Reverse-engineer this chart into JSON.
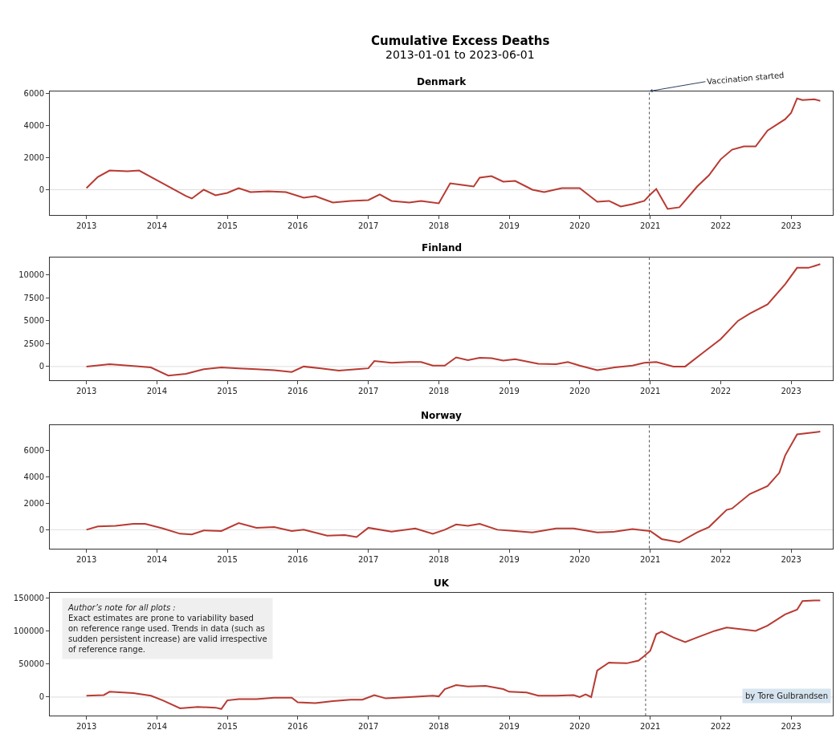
{
  "chart_data": [
    {
      "type": "line",
      "title": "Denmark",
      "color": "#b83a32",
      "x": [
        "2013-01",
        "2013-03",
        "2013-05",
        "2013-08",
        "2013-10",
        "2014-01",
        "2014-04",
        "2014-06",
        "2014-07",
        "2014-09",
        "2014-11",
        "2015-01",
        "2015-03",
        "2015-05",
        "2015-08",
        "2015-11",
        "2016-02",
        "2016-04",
        "2016-07",
        "2016-10",
        "2017-01",
        "2017-03",
        "2017-05",
        "2017-08",
        "2017-10",
        "2018-01",
        "2018-03",
        "2018-05",
        "2018-07",
        "2018-08",
        "2018-10",
        "2018-12",
        "2019-02",
        "2019-05",
        "2019-07",
        "2019-10",
        "2020-01",
        "2020-04",
        "2020-06",
        "2020-08",
        "2020-10",
        "2020-12",
        "2021-01",
        "2021-02",
        "2021-04",
        "2021-06",
        "2021-09",
        "2021-11",
        "2022-01",
        "2022-03",
        "2022-05",
        "2022-07",
        "2022-09",
        "2022-12",
        "2023-01",
        "2023-02",
        "2023-03",
        "2023-05",
        "2023-06"
      ],
      "values": [
        100,
        800,
        1200,
        1150,
        1200,
        600,
        0,
        -400,
        -550,
        0,
        -350,
        -200,
        100,
        -150,
        -100,
        -150,
        -500,
        -400,
        -800,
        -700,
        -650,
        -300,
        -700,
        -800,
        -700,
        -850,
        400,
        300,
        200,
        750,
        850,
        500,
        550,
        0,
        -150,
        100,
        100,
        -750,
        -700,
        -1050,
        -900,
        -700,
        -300,
        50,
        -1200,
        -1100,
        200,
        900,
        1900,
        2500,
        2700,
        2700,
        3700,
        4400,
        4800,
        5700,
        5600,
        5650,
        5550
      ],
      "xlim": [
        "2012-06-25",
        "2023-08-05"
      ],
      "xticks": [
        {
          "value": "2013-01-01",
          "label": "2013"
        },
        {
          "value": "2014-01-01",
          "label": "2014"
        },
        {
          "value": "2015-01-01",
          "label": "2015"
        },
        {
          "value": "2016-01-01",
          "label": "2016"
        },
        {
          "value": "2017-01-01",
          "label": "2017"
        },
        {
          "value": "2018-01-01",
          "label": "2018"
        },
        {
          "value": "2019-01-01",
          "label": "2019"
        },
        {
          "value": "2020-01-01",
          "label": "2020"
        },
        {
          "value": "2021-01-01",
          "label": "2021"
        },
        {
          "value": "2022-01-01",
          "label": "2022"
        },
        {
          "value": "2023-01-01",
          "label": "2023"
        }
      ],
      "ylim": [
        -1600,
        6150
      ],
      "yticks": [
        0,
        2000,
        4000,
        6000
      ],
      "ref_lines": [
        {
          "axis": "x",
          "value": "2020-12-27",
          "color": "#555555",
          "line_style": "dotted"
        },
        {
          "axis": "y",
          "value": 0,
          "color": "#dddddd",
          "line_style": "solid"
        }
      ],
      "annotations": [
        "Cumulative Excess Deaths",
        "2013-01-01 to 2023-06-01",
        {
          "text": "Vaccination started",
          "x": "2020-12-27",
          "y": 6150
        }
      ]
    },
    {
      "type": "line",
      "title": "Finland",
      "color": "#b83a32",
      "x": [
        "2013-01",
        "2013-05",
        "2013-09",
        "2013-12",
        "2014-03",
        "2014-06",
        "2014-09",
        "2014-12",
        "2015-03",
        "2015-06",
        "2015-09",
        "2015-12",
        "2016-02",
        "2016-05",
        "2016-08",
        "2016-11",
        "2017-01",
        "2017-02",
        "2017-05",
        "2017-08",
        "2017-10",
        "2017-12",
        "2018-02",
        "2018-04",
        "2018-06",
        "2018-08",
        "2018-10",
        "2018-12",
        "2019-02",
        "2019-06",
        "2019-09",
        "2019-11",
        "2020-01",
        "2020-04",
        "2020-07",
        "2020-10",
        "2020-12",
        "2021-02",
        "2021-05",
        "2021-07",
        "2021-10",
        "2022-01",
        "2022-04",
        "2022-06",
        "2022-09",
        "2022-12",
        "2023-02",
        "2023-04",
        "2023-06"
      ],
      "values": [
        0,
        250,
        50,
        -100,
        -1000,
        -800,
        -300,
        -100,
        -200,
        -300,
        -400,
        -600,
        0,
        -200,
        -450,
        -300,
        -200,
        600,
        400,
        500,
        500,
        100,
        100,
        1000,
        700,
        950,
        900,
        650,
        800,
        300,
        250,
        500,
        100,
        -400,
        -100,
        100,
        400,
        500,
        0,
        0,
        1500,
        3000,
        5000,
        5800,
        6800,
        9000,
        10800,
        10800,
        11200
      ],
      "xlim": [
        "2012-06-25",
        "2023-08-05"
      ],
      "xticks": [
        {
          "value": "2013-01-01",
          "label": "2013"
        },
        {
          "value": "2014-01-01",
          "label": "2014"
        },
        {
          "value": "2015-01-01",
          "label": "2015"
        },
        {
          "value": "2016-01-01",
          "label": "2016"
        },
        {
          "value": "2017-01-01",
          "label": "2017"
        },
        {
          "value": "2018-01-01",
          "label": "2018"
        },
        {
          "value": "2019-01-01",
          "label": "2019"
        },
        {
          "value": "2020-01-01",
          "label": "2020"
        },
        {
          "value": "2021-01-01",
          "label": "2021"
        },
        {
          "value": "2022-01-01",
          "label": "2022"
        },
        {
          "value": "2023-01-01",
          "label": "2023"
        }
      ],
      "ylim": [
        -1500,
        11900
      ],
      "yticks": [
        0,
        2500,
        5000,
        7500,
        10000
      ],
      "ref_lines": [
        {
          "axis": "x",
          "value": "2020-12-27",
          "color": "#555555",
          "line_style": "dotted"
        },
        {
          "axis": "y",
          "value": 0,
          "color": "#dddddd",
          "line_style": "solid"
        }
      ]
    },
    {
      "type": "line",
      "title": "Norway",
      "color": "#b83a32",
      "x": [
        "2013-01",
        "2013-03",
        "2013-06",
        "2013-09",
        "2013-11",
        "2014-02",
        "2014-05",
        "2014-07",
        "2014-09",
        "2014-12",
        "2015-03",
        "2015-06",
        "2015-09",
        "2015-12",
        "2016-02",
        "2016-06",
        "2016-09",
        "2016-11",
        "2017-01",
        "2017-05",
        "2017-09",
        "2017-12",
        "2018-02",
        "2018-04",
        "2018-06",
        "2018-08",
        "2018-11",
        "2019-02",
        "2019-05",
        "2019-09",
        "2019-12",
        "2020-04",
        "2020-07",
        "2020-10",
        "2020-12",
        "2021-01",
        "2021-03",
        "2021-06",
        "2021-09",
        "2021-11",
        "2022-02",
        "2022-03",
        "2022-06",
        "2022-09",
        "2022-11",
        "2022-12",
        "2023-02",
        "2023-06"
      ],
      "values": [
        0,
        250,
        300,
        450,
        450,
        100,
        -300,
        -350,
        -50,
        -100,
        500,
        150,
        200,
        -100,
        0,
        -450,
        -400,
        -550,
        150,
        -150,
        100,
        -300,
        0,
        400,
        300,
        450,
        0,
        -100,
        -200,
        100,
        100,
        -200,
        -150,
        50,
        -50,
        -100,
        -700,
        -950,
        -200,
        200,
        1500,
        1600,
        2700,
        3300,
        4300,
        5600,
        7200,
        7400
      ],
      "xlim": [
        "2012-06-25",
        "2023-08-05"
      ],
      "xticks": [
        {
          "value": "2013-01-01",
          "label": "2013"
        },
        {
          "value": "2014-01-01",
          "label": "2014"
        },
        {
          "value": "2015-01-01",
          "label": "2015"
        },
        {
          "value": "2016-01-01",
          "label": "2016"
        },
        {
          "value": "2017-01-01",
          "label": "2017"
        },
        {
          "value": "2018-01-01",
          "label": "2018"
        },
        {
          "value": "2019-01-01",
          "label": "2019"
        },
        {
          "value": "2020-01-01",
          "label": "2020"
        },
        {
          "value": "2021-01-01",
          "label": "2021"
        },
        {
          "value": "2022-01-01",
          "label": "2022"
        },
        {
          "value": "2023-01-01",
          "label": "2023"
        }
      ],
      "ylim": [
        -1400,
        7900
      ],
      "yticks": [
        0,
        2000,
        4000,
        6000
      ],
      "ref_lines": [
        {
          "axis": "x",
          "value": "2020-12-27",
          "color": "#555555",
          "line_style": "dotted"
        },
        {
          "axis": "y",
          "value": 0,
          "color": "#dddddd",
          "line_style": "solid"
        }
      ]
    },
    {
      "type": "line",
      "title": "UK",
      "color": "#b83a32",
      "x": [
        "2013-01",
        "2013-04",
        "2013-05",
        "2013-09",
        "2013-12",
        "2014-02",
        "2014-05",
        "2014-08",
        "2014-11",
        "2014-12",
        "2015-01",
        "2015-03",
        "2015-06",
        "2015-09",
        "2015-12",
        "2016-01",
        "2016-04",
        "2016-07",
        "2016-10",
        "2016-12",
        "2017-02",
        "2017-04",
        "2017-08",
        "2017-12",
        "2018-01",
        "2018-02",
        "2018-04",
        "2018-06",
        "2018-09",
        "2018-12",
        "2019-01",
        "2019-04",
        "2019-06",
        "2019-09",
        "2019-12",
        "2020-01",
        "2020-02",
        "2020-03",
        "2020-04",
        "2020-06",
        "2020-09",
        "2020-11",
        "2020-12",
        "2021-01",
        "2021-02",
        "2021-03",
        "2021-05",
        "2021-07",
        "2021-09",
        "2021-12",
        "2022-02",
        "2022-05",
        "2022-07",
        "2022-09",
        "2022-12",
        "2023-02",
        "2023-03",
        "2023-05",
        "2023-06"
      ],
      "values": [
        2000,
        3000,
        8000,
        6000,
        2000,
        -5000,
        -17000,
        -15000,
        -16000,
        -18000,
        -5000,
        -3000,
        -3000,
        -1000,
        -1000,
        -8000,
        -9000,
        -6000,
        -4000,
        -4000,
        3000,
        -2000,
        0,
        2000,
        1000,
        12000,
        18000,
        16000,
        17000,
        12000,
        8000,
        7000,
        2000,
        2000,
        3000,
        0,
        4000,
        0,
        40000,
        52000,
        51000,
        55000,
        62000,
        70000,
        95000,
        99000,
        90000,
        83000,
        90000,
        100000,
        105000,
        102000,
        100000,
        108000,
        125000,
        132000,
        145000,
        146000,
        146000
      ],
      "xlim": [
        "2012-06-25",
        "2023-08-05"
      ],
      "xticks": [
        {
          "value": "2013-01-01",
          "label": "2013"
        },
        {
          "value": "2014-01-01",
          "label": "2014"
        },
        {
          "value": "2015-01-01",
          "label": "2015"
        },
        {
          "value": "2016-01-01",
          "label": "2016"
        },
        {
          "value": "2017-01-01",
          "label": "2017"
        },
        {
          "value": "2018-01-01",
          "label": "2018"
        },
        {
          "value": "2019-01-01",
          "label": "2019"
        },
        {
          "value": "2020-01-01",
          "label": "2020"
        },
        {
          "value": "2021-01-01",
          "label": "2021"
        },
        {
          "value": "2022-01-01",
          "label": "2022"
        },
        {
          "value": "2023-01-01",
          "label": "2023"
        }
      ],
      "ylim": [
        -28000,
        157000
      ],
      "yticks": [
        0,
        50000,
        100000,
        150000
      ],
      "ref_lines": [
        {
          "axis": "x",
          "value": "2020-12-08",
          "color": "#555555",
          "line_style": "dotted"
        },
        {
          "axis": "y",
          "value": 0,
          "color": "#dddddd",
          "line_style": "solid"
        }
      ],
      "annotations": [
        "Author’s note for all plots :",
        "Exact estimates are prone to variability based\non reference range used. Trends in data (such as\nsudden persistent increase) are valid irrespective\nof reference range.",
        "by Tore Gulbrandsen"
      ]
    }
  ]
}
